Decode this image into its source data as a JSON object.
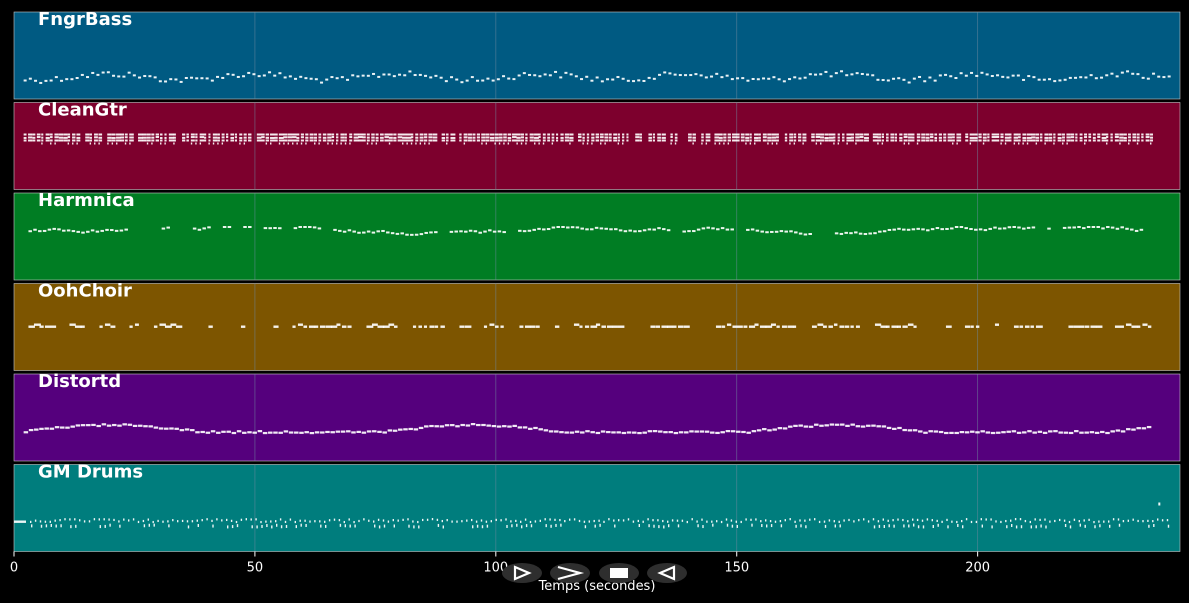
{
  "timeline": {
    "axis_title": "Temps (secondes)",
    "x_min": 0,
    "x_max": 242,
    "ticks": [
      {
        "value": 0,
        "label": "0"
      },
      {
        "value": 50,
        "label": "50"
      },
      {
        "value": 100,
        "label": "100"
      },
      {
        "value": 150,
        "label": "150"
      },
      {
        "value": 200,
        "label": "200"
      }
    ],
    "grid_color": "#6f8aa0",
    "note_color": "#ffffff"
  },
  "tracks": [
    {
      "name": "FngrBass",
      "color": "#005a82",
      "note_style": "bass",
      "start": 2,
      "end": 240
    },
    {
      "name": "CleanGtr",
      "color": "#7d002d",
      "note_style": "chord",
      "start": 2,
      "end": 236
    },
    {
      "name": "Harmnica",
      "color": "#007d23",
      "note_style": "melody",
      "start": 3,
      "end": 234
    },
    {
      "name": "OohChoir",
      "color": "#7d5500",
      "note_style": "sparse",
      "start": 3,
      "end": 236
    },
    {
      "name": "Distortd",
      "color": "#55007d",
      "note_style": "line",
      "start": 2,
      "end": 236
    },
    {
      "name": "GM Drums",
      "color": "#007d7d",
      "note_style": "drums",
      "start": 0,
      "end": 240
    }
  ],
  "transport": {
    "buttons": [
      {
        "id": "play",
        "icon": "play-icon"
      },
      {
        "id": "forward",
        "icon": "fast-forward-icon"
      },
      {
        "id": "stop",
        "icon": "stop-icon"
      },
      {
        "id": "back",
        "icon": "rewind-icon"
      }
    ]
  }
}
